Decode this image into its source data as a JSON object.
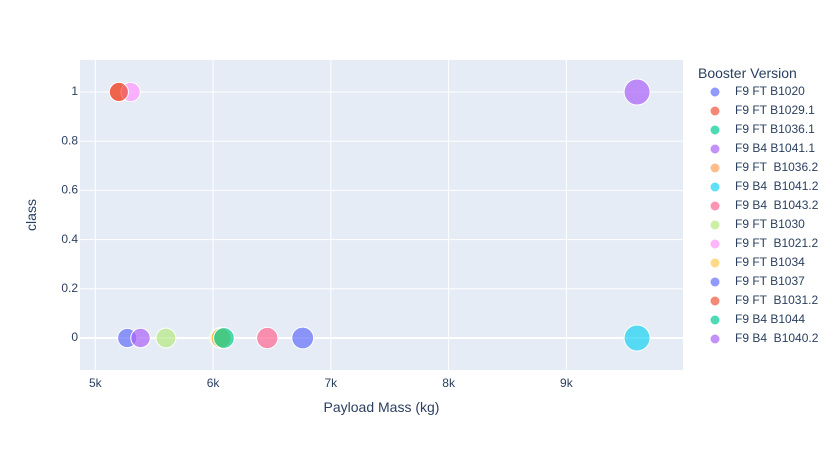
{
  "chart_data": {
    "type": "scatter",
    "xlabel": "Payload Mass (kg)",
    "ylabel": "class",
    "xlim": [
      4870,
      9990
    ],
    "ylim": [
      -0.13,
      1.13
    ],
    "x_ticks": [
      5000,
      6000,
      7000,
      8000,
      9000
    ],
    "x_tick_labels": [
      "5k",
      "6k",
      "7k",
      "8k",
      "9k"
    ],
    "y_ticks": [
      0,
      0.2,
      0.4,
      0.6,
      0.8,
      1
    ],
    "y_tick_labels": [
      "0",
      "0.2",
      "0.4",
      "0.6",
      "0.8",
      "1"
    ],
    "grid": true,
    "legend_title": "Booster Version",
    "legend_placement": "right",
    "series": [
      {
        "name": "F9 FT B1020",
        "color": "#636efa",
        "points": [
          {
            "x": 5271,
            "y": 0,
            "size": 5271
          }
        ]
      },
      {
        "name": "F9 FT B1029.1",
        "color": "#ef553b",
        "points": [
          {
            "x": 5200,
            "y": 1,
            "size": 5200
          }
        ]
      },
      {
        "name": "F9 FT B1036.1",
        "color": "#00cc96",
        "points": [
          {
            "x": 6070,
            "y": 0,
            "size": 6070
          }
        ]
      },
      {
        "name": "F9 B4 B1041.1",
        "color": "#ab63fa",
        "points": [
          {
            "x": 9600,
            "y": 1,
            "size": 9600
          }
        ]
      },
      {
        "name": "F9 FT  B1036.2",
        "color": "#ffa15a",
        "points": [
          {
            "x": 6060,
            "y": 0,
            "size": 6060
          }
        ]
      },
      {
        "name": "F9 B4  B1041.2",
        "color": "#19d3f3",
        "points": [
          {
            "x": 9600,
            "y": 0,
            "size": 9600
          }
        ]
      },
      {
        "name": "F9 B4  B1043.2",
        "color": "#ff6692",
        "points": [
          {
            "x": 6460,
            "y": 0,
            "size": 6460
          }
        ]
      },
      {
        "name": "F9 FT B1030",
        "color": "#b6e880",
        "points": [
          {
            "x": 5600,
            "y": 0,
            "size": 5600
          }
        ]
      },
      {
        "name": "F9 FT  B1021.2",
        "color": "#ff97ff",
        "points": [
          {
            "x": 5300,
            "y": 1,
            "size": 5300
          }
        ]
      },
      {
        "name": "F9 FT B1034",
        "color": "#fecb52",
        "points": [
          {
            "x": 6070,
            "y": 0,
            "size": 6070
          }
        ]
      },
      {
        "name": "F9 FT B1037",
        "color": "#636efa",
        "points": [
          {
            "x": 6761,
            "y": 0,
            "size": 6761
          }
        ]
      },
      {
        "name": "F9 FT  B1031.2",
        "color": "#ef553b",
        "points": [
          {
            "x": 5200,
            "y": 1,
            "size": 5200
          }
        ]
      },
      {
        "name": "F9 B4 B1044",
        "color": "#00cc96",
        "points": [
          {
            "x": 6092,
            "y": 0,
            "size": 6092
          }
        ]
      },
      {
        "name": "F9 B4  B1040.2",
        "color": "#ab63fa",
        "points": [
          {
            "x": 5384,
            "y": 0,
            "size": 5384
          }
        ]
      }
    ]
  }
}
